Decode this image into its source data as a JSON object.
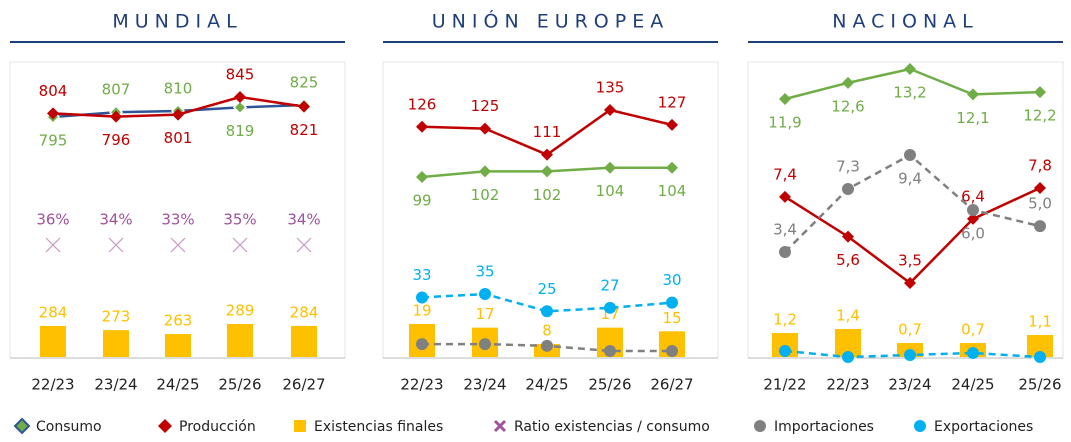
{
  "chart_data": [
    {
      "type": "line",
      "title": "MUNDIAL",
      "categories": [
        "22/23",
        "23/24",
        "24/25",
        "25/26",
        "26/27"
      ],
      "series": [
        {
          "name": "Consumo",
          "color": "#70ad47",
          "line_color": "#2e5597",
          "marker": "diamond",
          "values": [
            795,
            807,
            810,
            819,
            825
          ]
        },
        {
          "name": "Producción",
          "color": "#c00000",
          "marker": "diamond",
          "values": [
            804,
            796,
            801,
            845,
            821
          ]
        },
        {
          "name": "Existencias finales",
          "type": "bar",
          "color": "#ffc000",
          "values": [
            284,
            273,
            263,
            289,
            284
          ]
        },
        {
          "name": "Ratio existencias / consumo",
          "color": "#a0529b",
          "marker": "x",
          "values": [
            36,
            34,
            33,
            35,
            34
          ],
          "value_labels": [
            "36%",
            "34%",
            "33%",
            "35%",
            "34%"
          ]
        }
      ]
    },
    {
      "type": "line",
      "title": "UNIÓN EUROPEA",
      "categories": [
        "22/23",
        "23/24",
        "24/25",
        "25/26",
        "26/27"
      ],
      "series": [
        {
          "color": "#c00000",
          "marker": "diamond",
          "values": [
            126,
            125,
            111,
            135,
            127
          ]
        },
        {
          "color": "#70ad47",
          "marker": "diamond",
          "values": [
            99,
            102,
            102,
            104,
            104
          ]
        },
        {
          "type": "bar",
          "color": "#ffc000",
          "values": [
            19,
            17,
            8,
            17,
            15
          ]
        },
        {
          "name": "Importaciones",
          "color": "#808080",
          "marker": "circle",
          "dashed": true,
          "values": [
            6,
            6,
            5,
            2,
            2
          ]
        },
        {
          "name": "Exportaciones",
          "color": "#00b0f0",
          "marker": "circle",
          "dashed": true,
          "values": [
            33,
            35,
            25,
            27,
            30
          ]
        }
      ]
    },
    {
      "type": "line",
      "title": "NACIONAL",
      "categories": [
        "21/22",
        "22/23",
        "23/24",
        "24/25",
        "25/26"
      ],
      "series": [
        {
          "color": "#70ad47",
          "marker": "diamond",
          "values": [
            11.9,
            12.6,
            13.2,
            12.1,
            12.2
          ],
          "value_labels": [
            "11,9",
            "12,6",
            "13,2",
            "12,1",
            "12,2"
          ]
        },
        {
          "color": "#c00000",
          "marker": "diamond",
          "values": [
            7.4,
            5.6,
            3.5,
            6.4,
            7.8
          ],
          "value_labels": [
            "7,4",
            "5,6",
            "3,5",
            "6,4",
            "7,8"
          ]
        },
        {
          "color": "#808080",
          "marker": "circle",
          "dashed": true,
          "values": [
            3.4,
            7.3,
            9.4,
            6.0,
            5.0
          ],
          "value_labels": [
            "3,4",
            "7,3",
            "9,4",
            "6,0",
            "5,0"
          ]
        },
        {
          "type": "bar",
          "color": "#ffc000",
          "values": [
            1.2,
            1.4,
            0.7,
            0.7,
            1.1
          ],
          "value_labels": [
            "1,2",
            "1,4",
            "0,7",
            "0,7",
            "1,1"
          ]
        },
        {
          "color": "#00b0f0",
          "marker": "circle",
          "dashed": true,
          "values": [
            0.4,
            0.1,
            0.2,
            0.3,
            0.1
          ]
        }
      ]
    }
  ]
}
